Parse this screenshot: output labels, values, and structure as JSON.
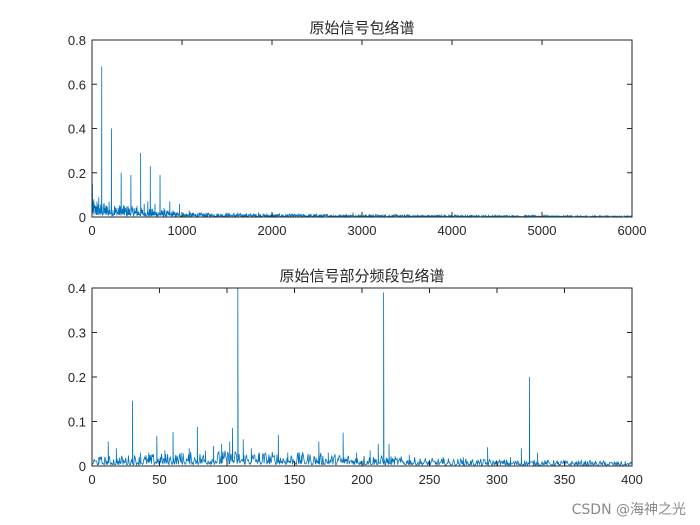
{
  "colors": {
    "line": "#0072BD",
    "axis": "#262626",
    "background": "#ffffff"
  },
  "watermark": "CSDN @海神之光",
  "chart_data": [
    {
      "type": "line",
      "title": "原始信号包络谱",
      "xlabel": "",
      "ylabel": "",
      "xlim": [
        0,
        6000
      ],
      "ylim": [
        0,
        0.8
      ],
      "xticks": [
        0,
        1000,
        2000,
        3000,
        4000,
        5000,
        6000
      ],
      "yticks": [
        0,
        0.2,
        0.4,
        0.6,
        0.8
      ],
      "grid": false,
      "series": [
        {
          "peaks": [
            [
              5,
              0.15
            ],
            [
              20,
              0.08
            ],
            [
              40,
              0.05
            ],
            [
              55,
              0.07
            ],
            [
              75,
              0.09
            ],
            [
              95,
              0.05
            ],
            [
              108,
              0.68
            ],
            [
              130,
              0.06
            ],
            [
              160,
              0.05
            ],
            [
              190,
              0.07
            ],
            [
              216,
              0.4
            ],
            [
              250,
              0.05
            ],
            [
              290,
              0.04
            ],
            [
              324,
              0.2
            ],
            [
              360,
              0.05
            ],
            [
              400,
              0.05
            ],
            [
              432,
              0.19
            ],
            [
              470,
              0.04
            ],
            [
              500,
              0.05
            ],
            [
              540,
              0.29
            ],
            [
              580,
              0.06
            ],
            [
              620,
              0.07
            ],
            [
              648,
              0.23
            ],
            [
              700,
              0.06
            ],
            [
              756,
              0.19
            ],
            [
              800,
              0.04
            ],
            [
              864,
              0.07
            ],
            [
              900,
              0.03
            ],
            [
              972,
              0.06
            ],
            [
              1080,
              0.03
            ],
            [
              1200,
              0.02
            ],
            [
              1500,
              0.02
            ],
            [
              1850,
              0.02
            ],
            [
              2900,
              0.02
            ]
          ],
          "noise_floor": [
            [
              0,
              0.04
            ],
            [
              1000,
              0.012
            ],
            [
              2000,
              0.008
            ],
            [
              4000,
              0.005
            ],
            [
              6000,
              0.003
            ]
          ]
        }
      ]
    },
    {
      "type": "line",
      "title": "原始信号部分频段包络谱",
      "xlabel": "",
      "ylabel": "",
      "xlim": [
        0,
        400
      ],
      "ylim": [
        0,
        0.4
      ],
      "xticks": [
        0,
        50,
        100,
        150,
        200,
        250,
        300,
        350,
        400
      ],
      "yticks": [
        0,
        0.1,
        0.2,
        0.3,
        0.4
      ],
      "grid": false,
      "series": [
        {
          "peaks": [
            [
              5,
              0.02
            ],
            [
              12,
              0.055
            ],
            [
              18,
              0.04
            ],
            [
              30,
              0.147
            ],
            [
              36,
              0.03
            ],
            [
              42,
              0.03
            ],
            [
              48,
              0.068
            ],
            [
              54,
              0.035
            ],
            [
              60,
              0.076
            ],
            [
              66,
              0.03
            ],
            [
              72,
              0.04
            ],
            [
              78,
              0.088
            ],
            [
              84,
              0.035
            ],
            [
              90,
              0.045
            ],
            [
              96,
              0.05
            ],
            [
              102,
              0.055
            ],
            [
              104,
              0.085
            ],
            [
              108,
              0.4
            ],
            [
              112,
              0.06
            ],
            [
              118,
              0.04
            ],
            [
              124,
              0.03
            ],
            [
              138,
              0.07
            ],
            [
              145,
              0.03
            ],
            [
              155,
              0.025
            ],
            [
              168,
              0.055
            ],
            [
              175,
              0.03
            ],
            [
              186,
              0.075
            ],
            [
              196,
              0.03
            ],
            [
              206,
              0.035
            ],
            [
              212,
              0.05
            ],
            [
              216,
              0.39
            ],
            [
              220,
              0.05
            ],
            [
              235,
              0.025
            ],
            [
              260,
              0.02
            ],
            [
              275,
              0.02
            ],
            [
              293,
              0.042
            ],
            [
              310,
              0.02
            ],
            [
              318,
              0.04
            ],
            [
              324,
              0.2
            ],
            [
              330,
              0.03
            ],
            [
              345,
              0.01
            ],
            [
              360,
              0.01
            ],
            [
              380,
              0.01
            ],
            [
              395,
              0.01
            ]
          ],
          "noise_floor": [
            [
              0,
              0.012
            ],
            [
              100,
              0.02
            ],
            [
              200,
              0.015
            ],
            [
              250,
              0.01
            ],
            [
              400,
              0.006
            ]
          ]
        }
      ]
    }
  ]
}
